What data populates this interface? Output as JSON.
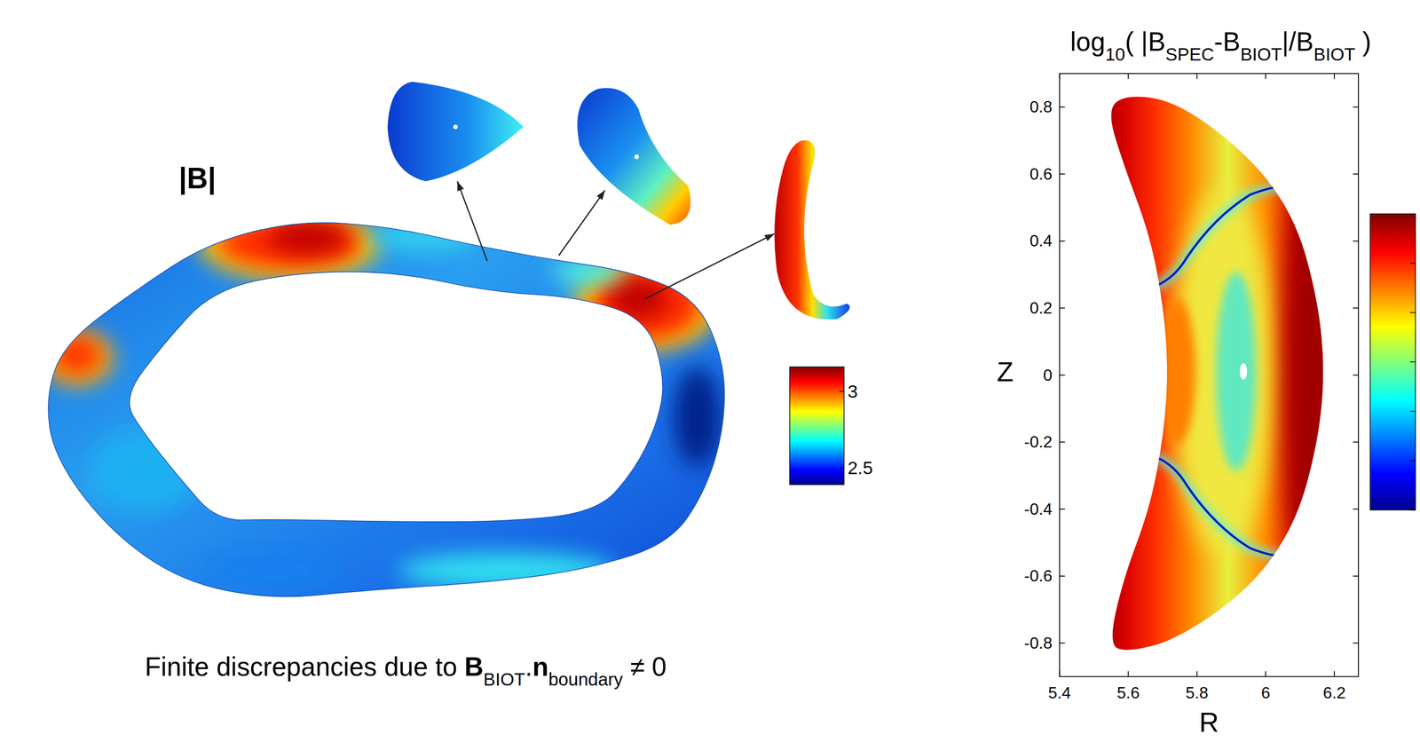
{
  "chart_data": {
    "type": "contour",
    "title": [
      {
        "text": "log",
        "style": "normal"
      },
      {
        "text": "10",
        "style": "sub"
      },
      {
        "text": "( |B",
        "style": "normal"
      },
      {
        "text": "SPEC",
        "style": "sub"
      },
      {
        "text": "-B",
        "style": "normal"
      },
      {
        "text": "BIOT",
        "style": "sub"
      },
      {
        "text": "|/B",
        "style": "normal"
      },
      {
        "text": "BIOT",
        "style": "sub"
      },
      {
        "text": " )",
        "style": "normal"
      }
    ],
    "x_label": "R",
    "y_label": "Z",
    "xlim": [
      5.4,
      6.27
    ],
    "xticks": [
      5.4,
      5.6,
      5.8,
      6,
      6.2
    ],
    "ylim": [
      -0.9,
      0.9
    ],
    "yticks": [
      -0.8,
      -0.6,
      -0.4,
      -0.2,
      0,
      0.2,
      0.4,
      0.6,
      0.8
    ],
    "grid": false
  },
  "left_panel": {
    "label": "|B|",
    "caption": [
      {
        "text": "Finite discrepancies due to ",
        "style": "normal"
      },
      {
        "text": "B",
        "style": "bold"
      },
      {
        "text": "BIOT",
        "style": "sub"
      },
      {
        "text": ".",
        "style": "normal"
      },
      {
        "text": "n",
        "style": "bold"
      },
      {
        "text": "boundary",
        "style": "sub"
      },
      {
        "text": " ≠ 0",
        "style": "normal"
      }
    ],
    "colorbar": {
      "range": [
        2.39,
        3.16
      ],
      "ticks": [
        2.5,
        3
      ]
    }
  }
}
